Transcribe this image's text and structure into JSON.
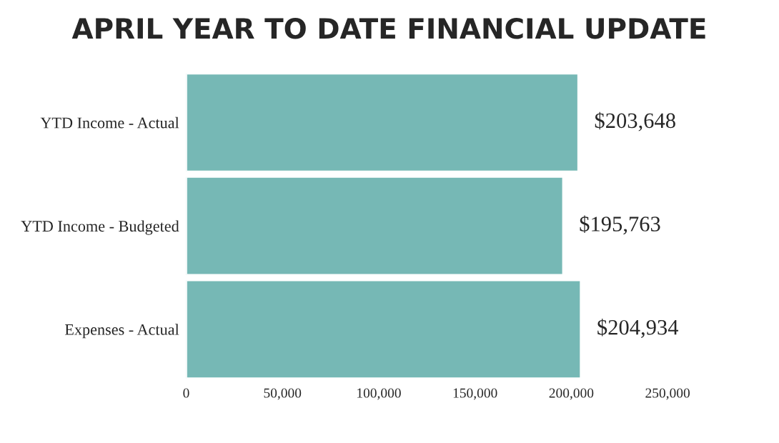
{
  "chart_data": {
    "type": "bar",
    "orientation": "horizontal",
    "title": "APRIL YEAR TO DATE FINANCIAL UPDATE",
    "categories": [
      "YTD Income - Actual",
      "YTD Income - Budgeted",
      "Expenses - Actual"
    ],
    "values": [
      203648,
      195763,
      204934
    ],
    "value_labels": [
      "$203,648",
      "$195,763",
      "$204,934"
    ],
    "color": "#76b8b5",
    "xlim": [
      0,
      250000
    ],
    "xticks": [
      0,
      {
        "value": 50000,
        "label": "50,000"
      },
      {
        "value": 100000,
        "label": "100,000"
      },
      {
        "value": 150000,
        "label": "150,000"
      },
      {
        "value": 200000,
        "label": "200,000"
      },
      {
        "value": 250000,
        "label": "250,000"
      }
    ],
    "grid": false,
    "legend": false
  }
}
